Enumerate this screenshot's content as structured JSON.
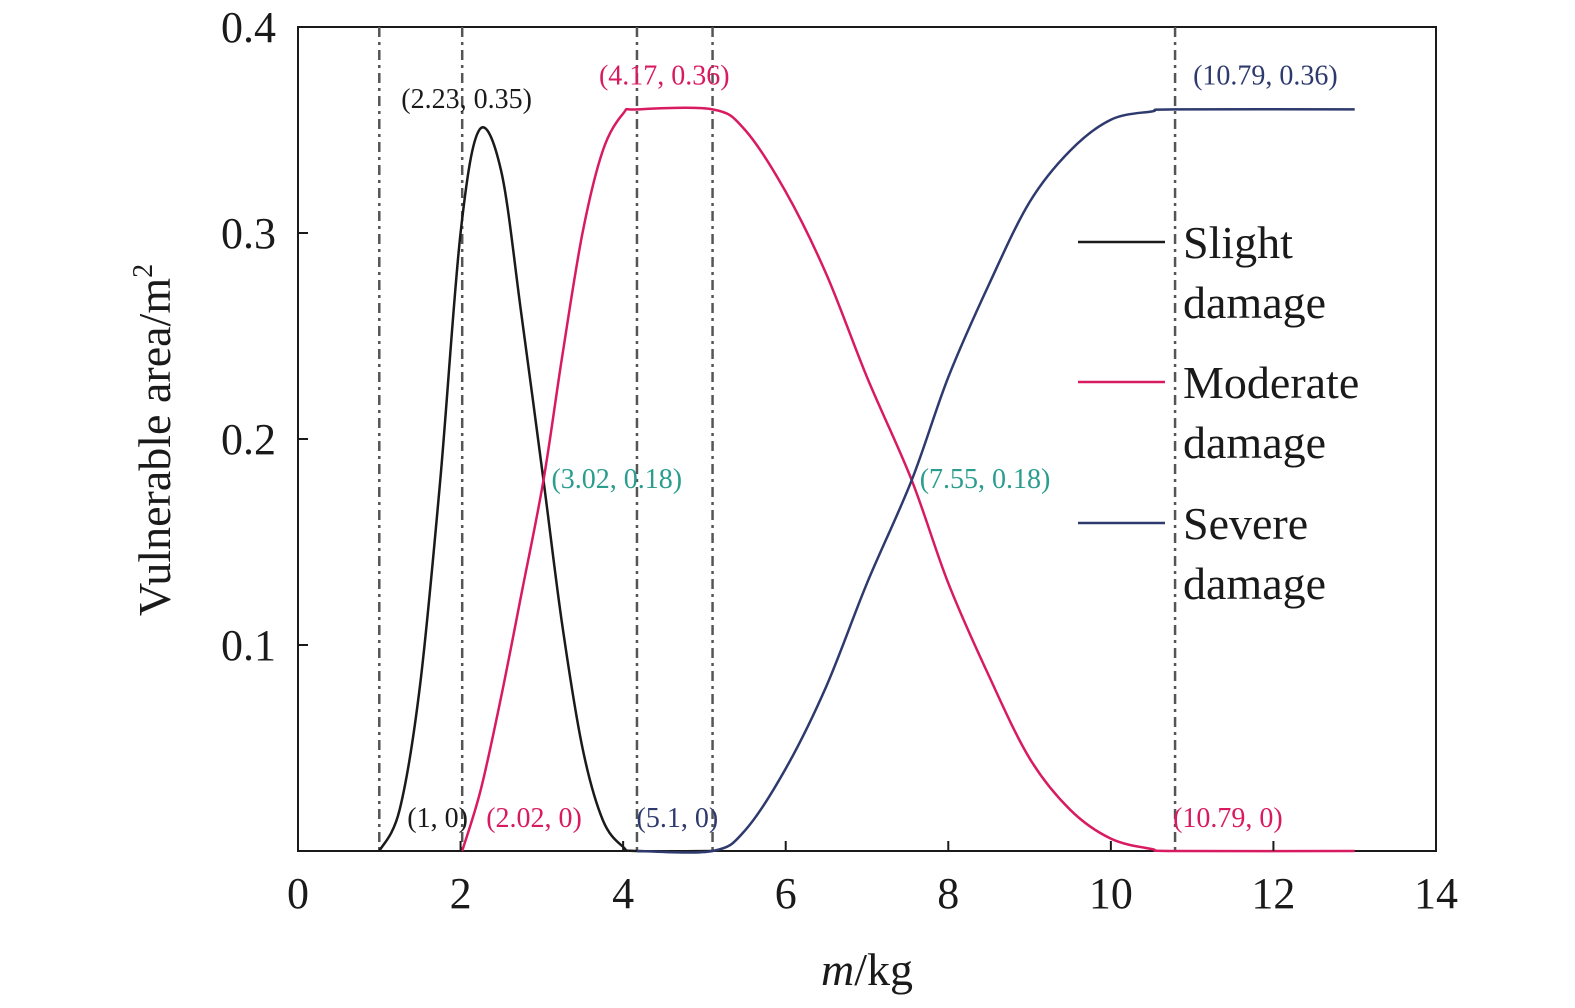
{
  "chart_data": {
    "type": "line",
    "title": "",
    "xlabel_italic": "m",
    "xlabel_rest": "/kg",
    "ylabel": "Vulnerable area/m",
    "ylabel_sup": "2",
    "xlim": [
      0,
      14
    ],
    "ylim": [
      0,
      0.4
    ],
    "xticks": [
      0,
      2,
      4,
      6,
      8,
      10,
      12,
      14
    ],
    "yticks": [
      0.1,
      0.2,
      0.3,
      0.4
    ],
    "xtick_labels": [
      "0",
      "2",
      "4",
      "6",
      "8",
      "10",
      "12",
      "14"
    ],
    "ytick_labels": [
      "0.1",
      "0.2",
      "0.3",
      "0.4"
    ],
    "grid": false,
    "legend_position": "right",
    "series": [
      {
        "name": "Slight damage",
        "legend_lines": [
          "Slight",
          "damage"
        ],
        "color": "#1a1a1a",
        "x": [
          1.0,
          1.25,
          1.5,
          1.75,
          2.0,
          2.23,
          2.5,
          2.75,
          3.02,
          3.25,
          3.5,
          3.75,
          4.0,
          4.17,
          5.1
        ],
        "y": [
          0,
          0.02,
          0.08,
          0.18,
          0.3,
          0.35,
          0.33,
          0.26,
          0.18,
          0.11,
          0.05,
          0.015,
          0.002,
          0,
          0
        ]
      },
      {
        "name": "Moderate damage",
        "legend_lines": [
          "Moderate",
          "damage"
        ],
        "color": "#d81b60",
        "x": [
          2.02,
          2.25,
          2.5,
          2.75,
          3.02,
          3.25,
          3.5,
          3.75,
          4.0,
          4.17,
          5.1,
          5.5,
          6.0,
          6.5,
          7.0,
          7.55,
          8.0,
          8.5,
          9.0,
          9.5,
          10.0,
          10.5,
          10.79,
          13.0
        ],
        "y": [
          0,
          0.03,
          0.075,
          0.125,
          0.18,
          0.24,
          0.3,
          0.34,
          0.358,
          0.36,
          0.36,
          0.35,
          0.32,
          0.28,
          0.23,
          0.18,
          0.13,
          0.085,
          0.045,
          0.02,
          0.006,
          0.001,
          0,
          0
        ]
      },
      {
        "name": "Severe damage",
        "legend_lines": [
          "Severe",
          "damage"
        ],
        "color": "#2e3a6e",
        "x": [
          4.17,
          5.1,
          5.5,
          6.0,
          6.5,
          7.0,
          7.55,
          8.0,
          8.5,
          9.0,
          9.5,
          10.0,
          10.5,
          10.79,
          13.0
        ],
        "y": [
          0,
          0,
          0.01,
          0.04,
          0.08,
          0.13,
          0.18,
          0.23,
          0.275,
          0.315,
          0.34,
          0.355,
          0.359,
          0.36,
          0.36
        ]
      }
    ],
    "vlines": [
      1.0,
      2.02,
      4.17,
      5.1,
      10.79
    ],
    "annotations": [
      {
        "text": "(2.23, 0.35)",
        "x": 2.23,
        "y": 0.35,
        "color": "#1a1a1a"
      },
      {
        "text": "(4.17, 0.36)",
        "x": 4.17,
        "y": 0.36,
        "color": "#d81b60"
      },
      {
        "text": "(10.79, 0.36)",
        "x": 10.79,
        "y": 0.36,
        "color": "#2e3a6e"
      },
      {
        "text": "(3.02, 0.18)",
        "x": 3.02,
        "y": 0.18,
        "color": "#2a9d8f"
      },
      {
        "text": "(7.55, 0.18)",
        "x": 7.55,
        "y": 0.18,
        "color": "#2a9d8f"
      },
      {
        "text": "(1, 0)",
        "x": 1.0,
        "y": 0,
        "color": "#1a1a1a"
      },
      {
        "text": "(2.02, 0)",
        "x": 2.02,
        "y": 0,
        "color": "#d81b60"
      },
      {
        "text": "(5.1, 0)",
        "x": 5.1,
        "y": 0,
        "color": "#2e3a6e"
      },
      {
        "text": "(10.79, 0)",
        "x": 10.79,
        "y": 0,
        "color": "#d81b60"
      }
    ]
  }
}
